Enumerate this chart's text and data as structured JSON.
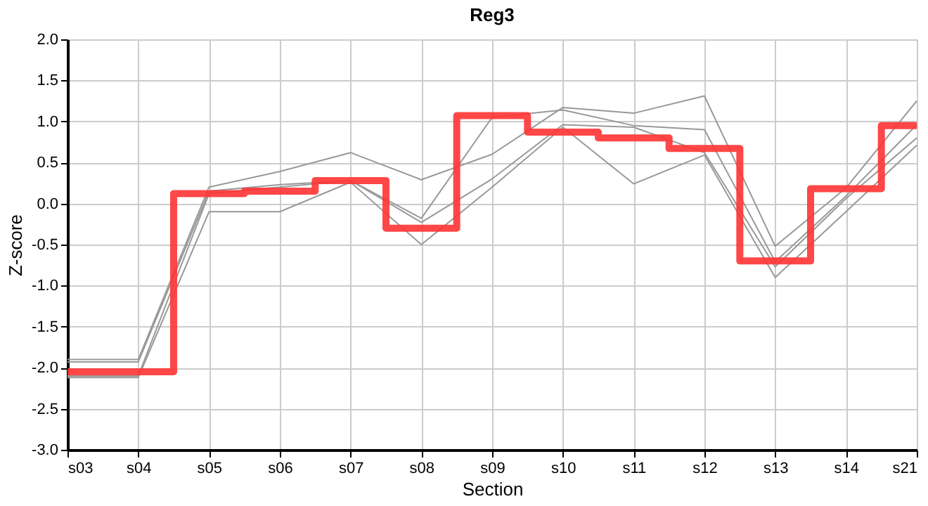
{
  "chart_data": {
    "type": "line",
    "title": "Reg3",
    "xlabel": "Section",
    "ylabel": "Z-score",
    "categories": [
      "s03",
      "s04",
      "s05",
      "s06",
      "s07",
      "s08",
      "s09",
      "s10",
      "s11",
      "s12",
      "s13",
      "s14",
      "s21"
    ],
    "ylim": [
      -3.0,
      2.0
    ],
    "yticks": [
      {
        "value": -3,
        "label": "-3.0"
      },
      {
        "value": -2.5,
        "label": "-2.5"
      },
      {
        "value": -2,
        "label": "-2.0"
      },
      {
        "value": -1.5,
        "label": "-1.5"
      },
      {
        "value": -1,
        "label": "-1.0"
      },
      {
        "value": -0.5,
        "label": "-0.5"
      },
      {
        "value": 0,
        "label": "0.0"
      },
      {
        "value": 0.5,
        "label": "0.5"
      },
      {
        "value": 1,
        "label": "1.0"
      },
      {
        "value": 1.5,
        "label": "1.5"
      },
      {
        "value": 2,
        "label": "2.0"
      }
    ],
    "grid": true,
    "line_style": "solid",
    "marker": "none",
    "series": [
      {
        "color": "#999999",
        "values": [
          -1.9,
          -1.9,
          0.2,
          0.39,
          0.62,
          0.29,
          0.6,
          1.17,
          1.1,
          1.31,
          -0.52,
          0.19,
          1.25
        ]
      },
      {
        "color": "#999999",
        "values": [
          -1.93,
          -1.93,
          0.15,
          0.23,
          0.28,
          -0.18,
          1.05,
          1.14,
          0.95,
          0.9,
          -0.71,
          0.09,
          0.96
        ]
      },
      {
        "color": "#999999",
        "values": [
          -2.1,
          -2.1,
          0.12,
          0.2,
          0.28,
          -0.23,
          0.3,
          0.96,
          0.93,
          0.62,
          -0.77,
          0.06,
          0.8
        ]
      },
      {
        "color": "#999999",
        "values": [
          -2.12,
          -2.12,
          -0.1,
          -0.1,
          0.26,
          -0.5,
          0.2,
          0.93,
          0.24,
          0.59,
          -0.9,
          -0.1,
          0.71
        ]
      },
      {
        "type": "step",
        "color": "#ff3333",
        "values": [
          -2.05,
          -2.05,
          0.12,
          0.15,
          0.28,
          -0.3,
          1.07,
          0.87,
          0.8,
          0.67,
          -0.7,
          0.18,
          0.95
        ]
      }
    ]
  }
}
